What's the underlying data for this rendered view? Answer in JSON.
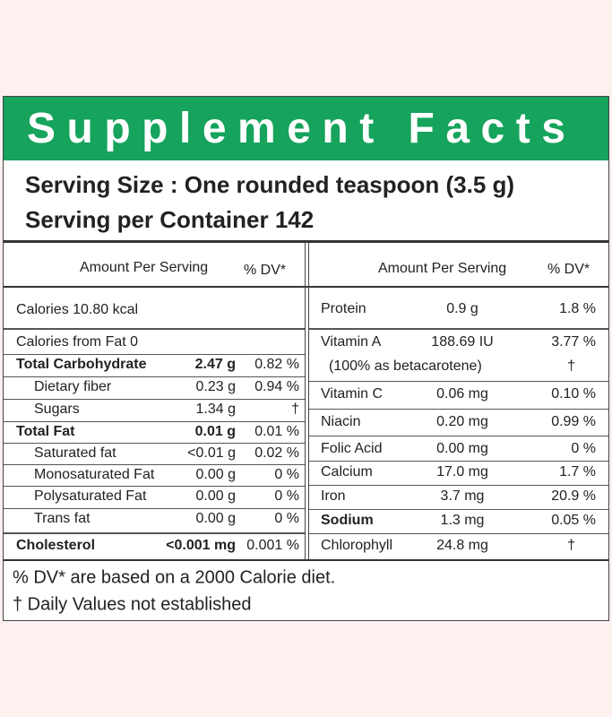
{
  "title": "Supplement Facts",
  "serving_size": "Serving Size : One rounded teaspoon (3.5 g)",
  "servings_per_container": "Serving per Container 142",
  "left": {
    "header": {
      "amount": "Amount Per Serving",
      "dv": "% DV*"
    },
    "rows": [
      {
        "name": "Calories 10.80 kcal"
      },
      {
        "name": "Calories from Fat 0"
      },
      {
        "name": "Total Carbohydrate",
        "amount": "2.47 g",
        "dv": "0.82 %"
      },
      {
        "name": "Dietary fiber",
        "amount": "0.23 g",
        "dv": "0.94 %"
      },
      {
        "name": "Sugars",
        "amount": "1.34 g",
        "dv": "†"
      },
      {
        "name": "Total Fat",
        "amount": "0.01 g",
        "dv": "0.01 %"
      },
      {
        "name": "Saturated fat",
        "amount": "<0.01 g",
        "dv": "0.02 %"
      },
      {
        "name": "Monosaturated Fat",
        "amount": "0.00 g",
        "dv": "0 %"
      },
      {
        "name": "Polysaturated Fat",
        "amount": "0.00 g",
        "dv": "0 %"
      },
      {
        "name": "Trans fat",
        "amount": "0.00 g",
        "dv": "0 %"
      },
      {
        "name": "Cholesterol",
        "amount": "<0.001 mg",
        "dv": "0.001 %"
      }
    ]
  },
  "right": {
    "header": {
      "amount": "Amount Per Serving",
      "dv": "% DV*"
    },
    "rows": [
      {
        "name": "Protein",
        "amount": "0.9 g",
        "dv": "1.8 %"
      },
      {
        "name": "Vitamin A",
        "amount": "188.69 IU",
        "dv": "3.77 %"
      },
      {
        "name": "(100% as betacarotene)",
        "dv": "†"
      },
      {
        "name": "Vitamin C",
        "amount": "0.06 mg",
        "dv": "0.10 %"
      },
      {
        "name": "Niacin",
        "amount": "0.20 mg",
        "dv": "0.99 %"
      },
      {
        "name": "Folic Acid",
        "amount": "0.00 mg",
        "dv": "0 %"
      },
      {
        "name": "Calcium",
        "amount": "17.0 mg",
        "dv": "1.7 %"
      },
      {
        "name": "Iron",
        "amount": "3.7 mg",
        "dv": "20.9 %"
      },
      {
        "name": "Sodium",
        "amount": "1.3 mg",
        "dv": "0.05 %"
      },
      {
        "name": "Chlorophyll",
        "amount": "24.8 mg",
        "dv": "†"
      }
    ]
  },
  "footer": [
    "% DV* are based on a 2000 Calorie diet.",
    "† Daily Values not established"
  ]
}
